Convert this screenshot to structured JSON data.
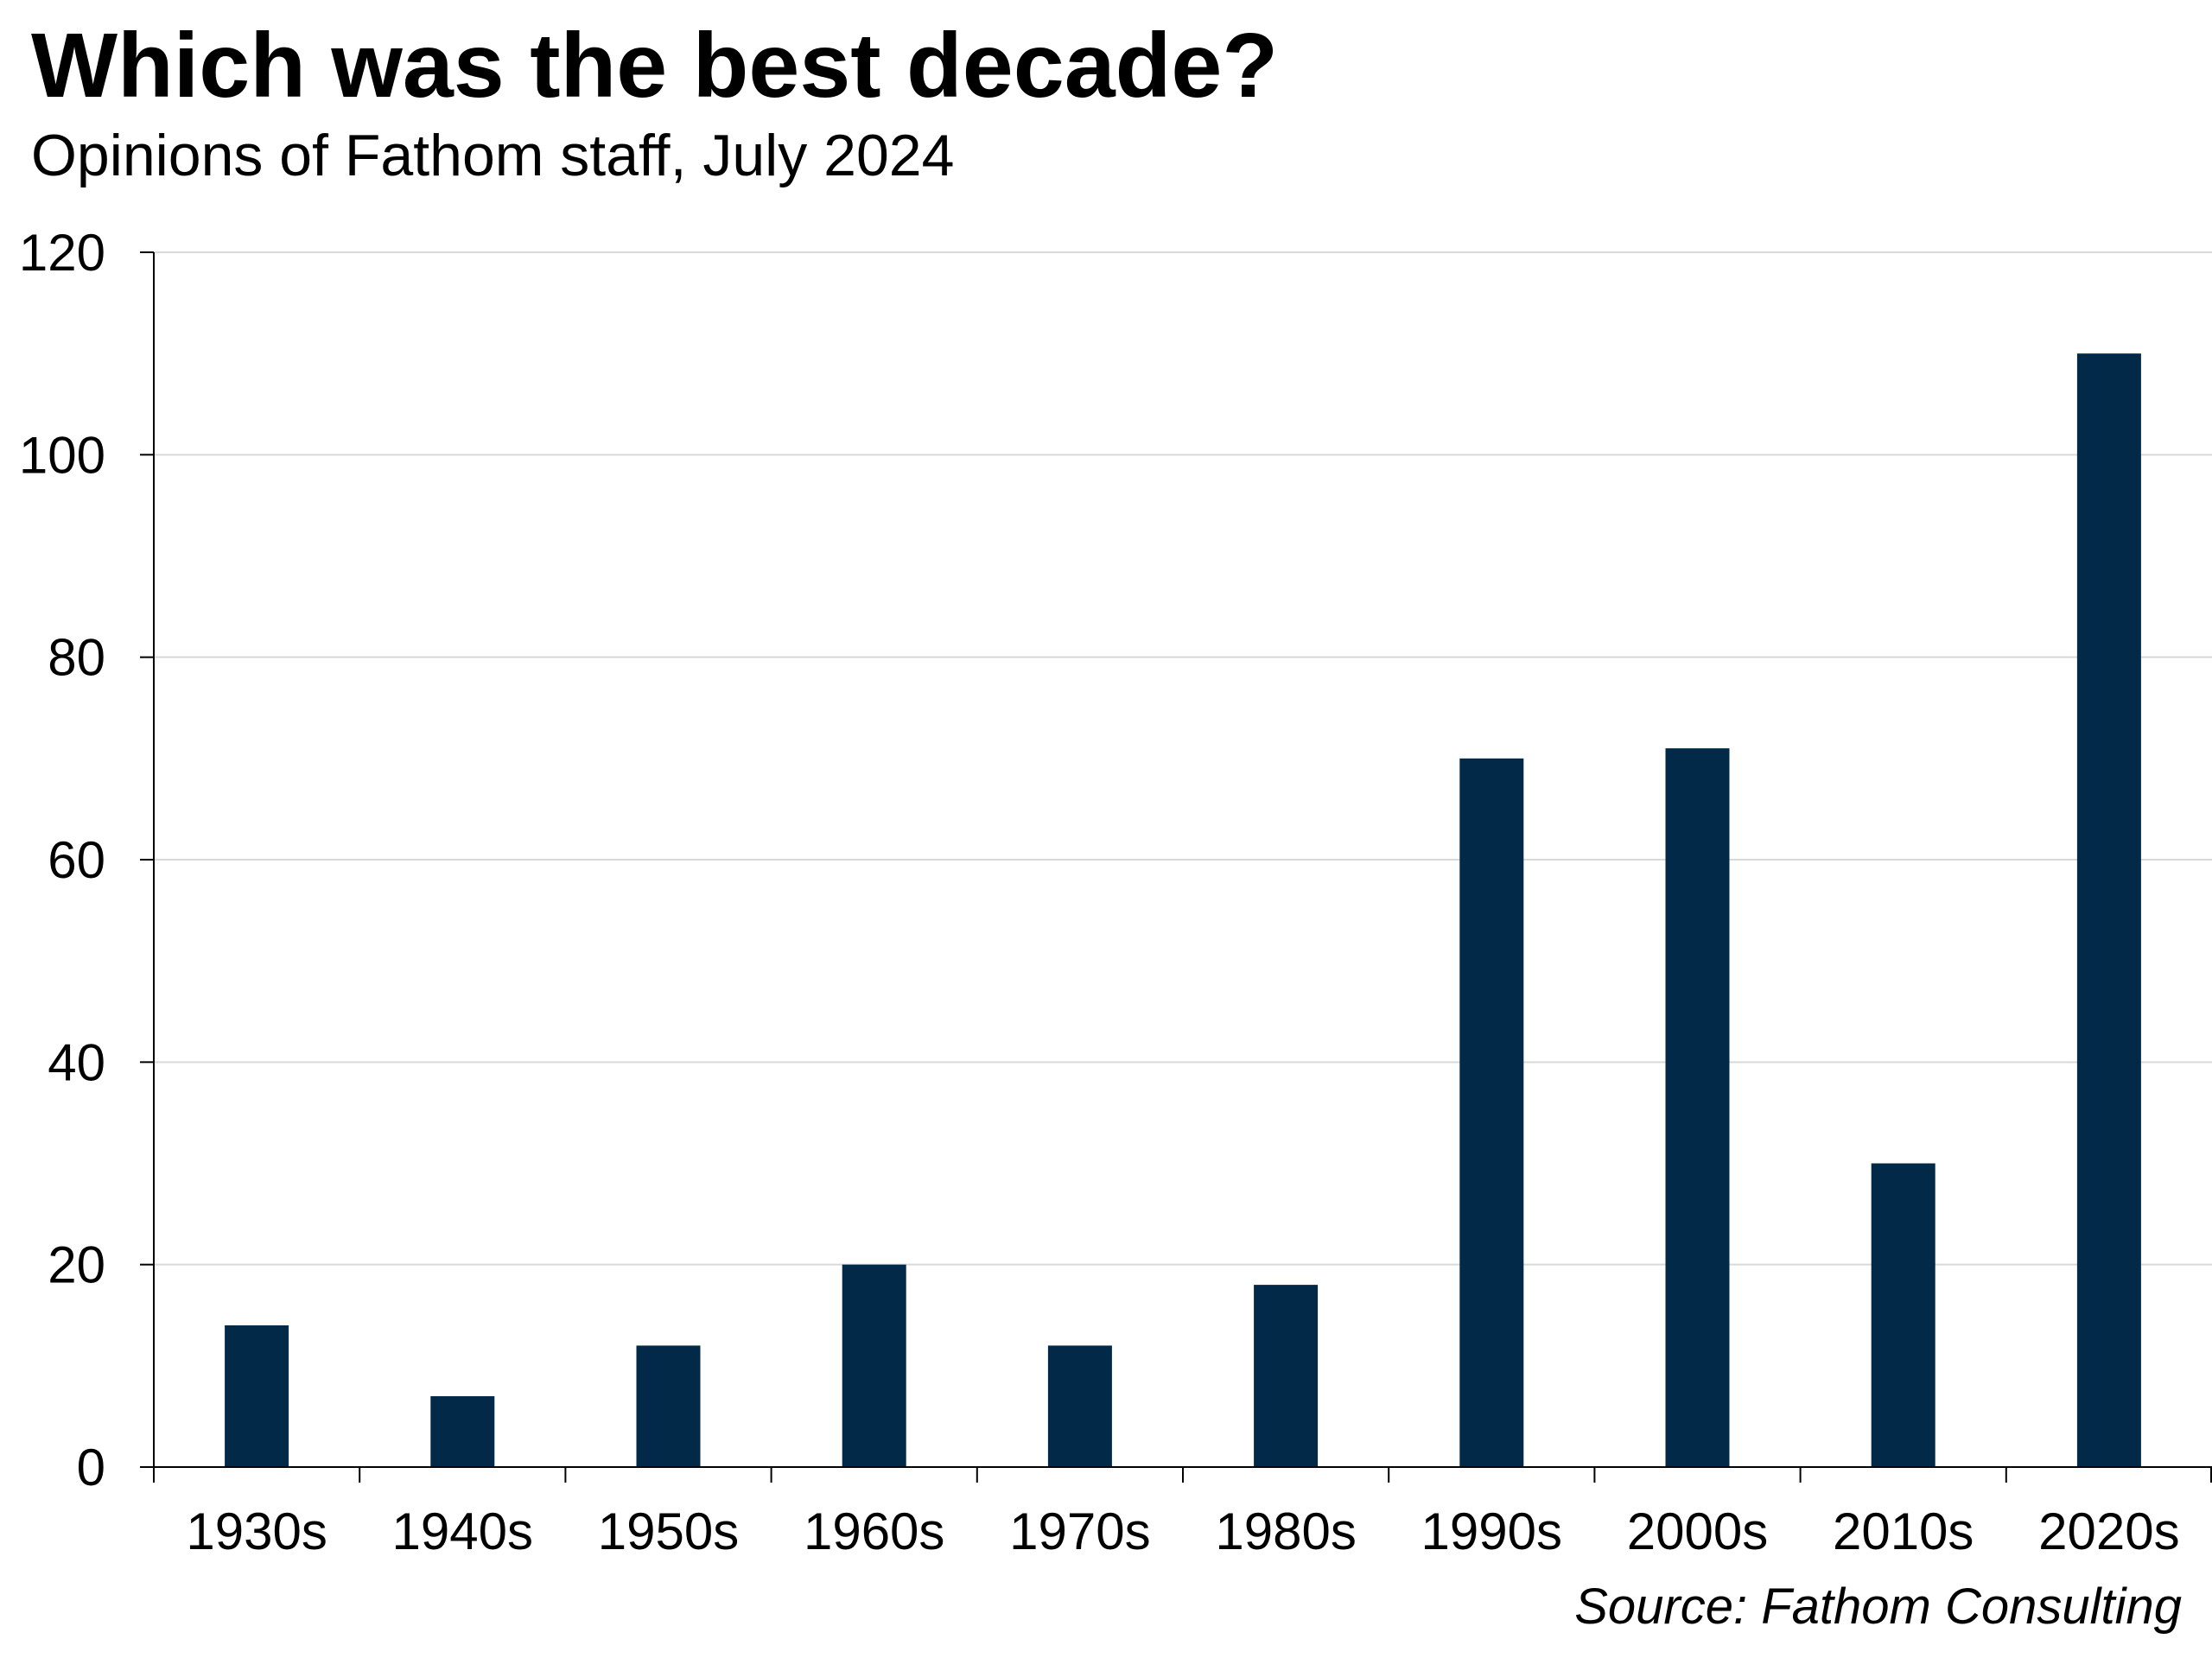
{
  "chart_data": {
    "type": "bar",
    "title": "Which was the best decade?",
    "subtitle": "Opinions of Fathom staff, July 2024",
    "source": "Source: Fathom Consulting",
    "categories": [
      "1930s",
      "1940s",
      "1950s",
      "1960s",
      "1970s",
      "1980s",
      "1990s",
      "2000s",
      "2010s",
      "2020s"
    ],
    "values": [
      14,
      7,
      12,
      20,
      12,
      18,
      70,
      71,
      30,
      110
    ],
    "ylim": [
      0,
      120
    ],
    "yticks": [
      "0",
      "20",
      "40",
      "60",
      "80",
      "100",
      "120"
    ],
    "xlabel": "",
    "ylabel": "",
    "grid": true,
    "bar_color": "#022a48",
    "grid_color": "#d9d9d9"
  }
}
